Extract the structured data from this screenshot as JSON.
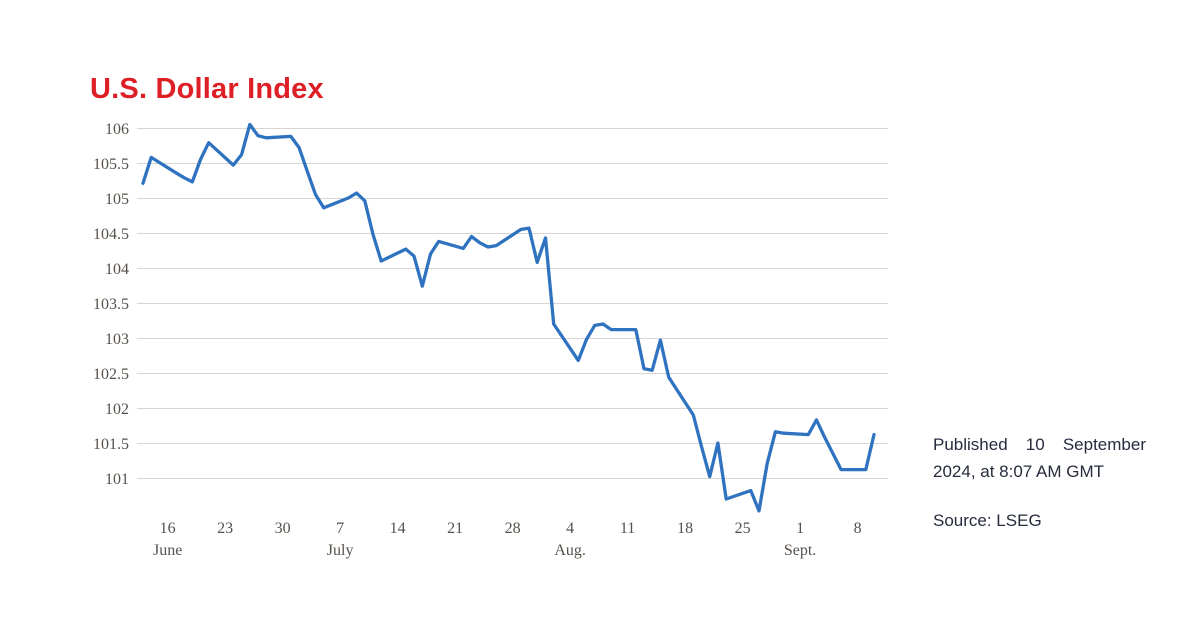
{
  "title": "U.S. Dollar Index",
  "note": {
    "published": "Published 10 September 2024, at 8:07 AM GMT",
    "source": "Source: LSEG"
  },
  "colors": {
    "title": "#de1f26",
    "line": "#2f73c0",
    "grid": "#d8d6d4",
    "axis_text": "#57514b",
    "note_text": "#262c3e"
  },
  "chart_data": {
    "type": "line",
    "title": "U.S. Dollar Index",
    "xlabel": "",
    "ylabel": "",
    "grid": "horizontal",
    "legend": "none",
    "ylim": [
      101,
      106
    ],
    "xlim": [
      "2024-06-13",
      "2024-09-10"
    ],
    "yticks": [
      {
        "value": 106,
        "label": "106"
      },
      {
        "value": 105.5,
        "label": "105.5"
      },
      {
        "value": 105,
        "label": "105"
      },
      {
        "value": 104.5,
        "label": "104.5"
      },
      {
        "value": 104,
        "label": "104"
      },
      {
        "value": 103.5,
        "label": "103.5"
      },
      {
        "value": 103,
        "label": "103"
      },
      {
        "value": 102.5,
        "label": "102.5"
      },
      {
        "value": 102,
        "label": "102"
      },
      {
        "value": 101.5,
        "label": "101.5"
      },
      {
        "value": 101,
        "label": "101"
      }
    ],
    "xticks": [
      {
        "date": "2024-06-16",
        "label": "16",
        "month": "June"
      },
      {
        "date": "2024-06-23",
        "label": "23",
        "month": ""
      },
      {
        "date": "2024-06-30",
        "label": "30",
        "month": ""
      },
      {
        "date": "2024-07-07",
        "label": "7",
        "month": "July"
      },
      {
        "date": "2024-07-14",
        "label": "14",
        "month": ""
      },
      {
        "date": "2024-07-21",
        "label": "21",
        "month": ""
      },
      {
        "date": "2024-07-28",
        "label": "28",
        "month": ""
      },
      {
        "date": "2024-08-04",
        "label": "4",
        "month": "Aug."
      },
      {
        "date": "2024-08-11",
        "label": "11",
        "month": ""
      },
      {
        "date": "2024-08-18",
        "label": "18",
        "month": ""
      },
      {
        "date": "2024-08-25",
        "label": "25",
        "month": ""
      },
      {
        "date": "2024-09-01",
        "label": "1",
        "month": "Sept."
      },
      {
        "date": "2024-09-08",
        "label": "8",
        "month": ""
      }
    ],
    "series": [
      {
        "name": "U.S. Dollar Index",
        "points": [
          [
            "2024-06-13",
            105.21
          ],
          [
            "2024-06-14",
            105.58
          ],
          [
            "2024-06-17",
            105.36
          ],
          [
            "2024-06-18",
            105.29
          ],
          [
            "2024-06-19",
            105.23
          ],
          [
            "2024-06-20",
            105.55
          ],
          [
            "2024-06-21",
            105.79
          ],
          [
            "2024-06-24",
            105.47
          ],
          [
            "2024-06-25",
            105.62
          ],
          [
            "2024-06-26",
            106.05
          ],
          [
            "2024-06-27",
            105.89
          ],
          [
            "2024-06-28",
            105.86
          ],
          [
            "2024-07-01",
            105.88
          ],
          [
            "2024-07-02",
            105.72
          ],
          [
            "2024-07-03",
            105.38
          ],
          [
            "2024-07-04",
            105.05
          ],
          [
            "2024-07-05",
            104.86
          ],
          [
            "2024-07-08",
            105.0
          ],
          [
            "2024-07-09",
            105.07
          ],
          [
            "2024-07-10",
            104.96
          ],
          [
            "2024-07-11",
            104.48
          ],
          [
            "2024-07-12",
            104.1
          ],
          [
            "2024-07-15",
            104.27
          ],
          [
            "2024-07-16",
            104.17
          ],
          [
            "2024-07-17",
            103.74
          ],
          [
            "2024-07-18",
            104.2
          ],
          [
            "2024-07-19",
            104.38
          ],
          [
            "2024-07-22",
            104.28
          ],
          [
            "2024-07-23",
            104.45
          ],
          [
            "2024-07-24",
            104.36
          ],
          [
            "2024-07-25",
            104.3
          ],
          [
            "2024-07-26",
            104.32
          ],
          [
            "2024-07-29",
            104.55
          ],
          [
            "2024-07-30",
            104.57
          ],
          [
            "2024-07-31",
            104.08
          ],
          [
            "2024-08-01",
            104.43
          ],
          [
            "2024-08-02",
            103.2
          ],
          [
            "2024-08-05",
            102.68
          ],
          [
            "2024-08-06",
            102.98
          ],
          [
            "2024-08-07",
            103.18
          ],
          [
            "2024-08-08",
            103.2
          ],
          [
            "2024-08-09",
            103.12
          ],
          [
            "2024-08-12",
            103.12
          ],
          [
            "2024-08-13",
            102.56
          ],
          [
            "2024-08-14",
            102.54
          ],
          [
            "2024-08-15",
            102.97
          ],
          [
            "2024-08-16",
            102.44
          ],
          [
            "2024-08-19",
            101.9
          ],
          [
            "2024-08-20",
            101.45
          ],
          [
            "2024-08-21",
            101.02
          ],
          [
            "2024-08-22",
            101.5
          ],
          [
            "2024-08-23",
            100.7
          ],
          [
            "2024-08-26",
            100.82
          ],
          [
            "2024-08-27",
            100.53
          ],
          [
            "2024-08-28",
            101.21
          ],
          [
            "2024-08-29",
            101.66
          ],
          [
            "2024-08-30",
            101.64
          ],
          [
            "2024-09-02",
            101.62
          ],
          [
            "2024-09-03",
            101.83
          ],
          [
            "2024-09-04",
            101.58
          ],
          [
            "2024-09-05",
            101.35
          ],
          [
            "2024-09-06",
            101.12
          ],
          [
            "2024-09-09",
            101.12
          ],
          [
            "2024-09-10",
            101.62
          ]
        ]
      }
    ]
  }
}
